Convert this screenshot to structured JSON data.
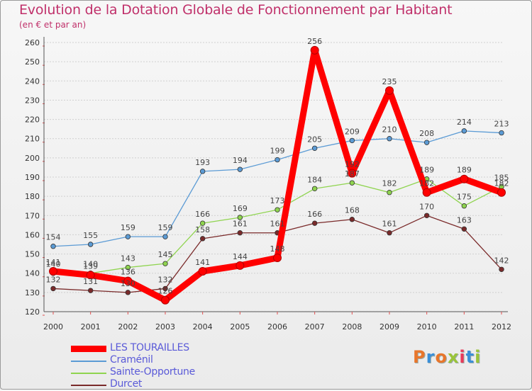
{
  "title": "Evolution de la Dotation Globale de Fonctionnement par Habitant",
  "subtitle": "(en € et par an)",
  "logo": "Proxiti",
  "logo_colors": [
    "#e8762b",
    "#3a8fd8",
    "#e8762b",
    "#9ac43a",
    "#e83a5a",
    "#3a8fd8",
    "#9ac43a"
  ],
  "chart_data": {
    "type": "line",
    "title": "Evolution de la Dotation Globale de Fonctionnement par Habitant",
    "subtitle": "(en € et par an)",
    "xlabel": "",
    "ylabel": "",
    "ylim": [
      120,
      260
    ],
    "yticks": [
      120,
      130,
      140,
      150,
      160,
      170,
      180,
      190,
      200,
      210,
      220,
      230,
      240,
      250,
      260
    ],
    "categories": [
      "2000",
      "2001",
      "2002",
      "2003",
      "2004",
      "2005",
      "2006",
      "2007",
      "2008",
      "2009",
      "2010",
      "2011",
      "2012"
    ],
    "grid": "horizontal",
    "legend_position": "bottom-left",
    "series": [
      {
        "name": "Craménil",
        "color": "#5b9bd5",
        "values": [
          154,
          155,
          159,
          159,
          193,
          194,
          199,
          205,
          209,
          210,
          208,
          214,
          213
        ]
      },
      {
        "name": "Sainte-Opportune",
        "color": "#8fd44f",
        "values": [
          140,
          140,
          143,
          145,
          166,
          169,
          173,
          184,
          187,
          182,
          189,
          175,
          185
        ]
      },
      {
        "name": "Durcet",
        "color": "#7a2a2a",
        "values": [
          132,
          131,
          130,
          132,
          158,
          161,
          161,
          166,
          168,
          161,
          170,
          163,
          142
        ]
      },
      {
        "name": "LES TOURAILLES",
        "color": "#ff0000",
        "values": [
          141,
          139,
          136,
          126,
          141,
          144,
          148,
          256,
          192,
          235,
          182,
          189,
          182
        ]
      }
    ],
    "legend_order": [
      "LES TOURAILLES",
      "Craménil",
      "Sainte-Opportune",
      "Durcet"
    ]
  }
}
